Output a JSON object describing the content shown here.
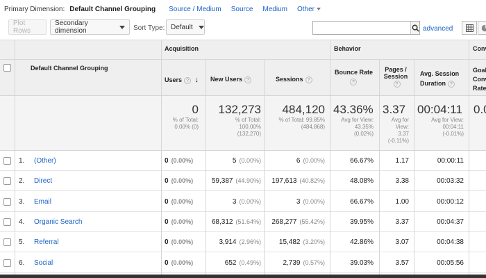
{
  "dimension_bar": {
    "label": "Primary Dimension:",
    "selected": "Default Channel Grouping",
    "options": [
      "Source / Medium",
      "Source",
      "Medium",
      "Other"
    ]
  },
  "toolbar": {
    "plot_rows": "Plot Rows",
    "secondary_dimension": "Secondary dimension",
    "sort_type_label": "Sort Type:",
    "sort_type_value": "Default",
    "search_value": "",
    "advanced": "advanced"
  },
  "table": {
    "dimension_header": "Default Channel Grouping",
    "groups": {
      "acquisition": "Acquisition",
      "behavior": "Behavior",
      "conversions": "Conv"
    },
    "columns": {
      "users": "Users",
      "new_users": "New Users",
      "sessions": "Sessions",
      "bounce_rate": "Bounce Rate",
      "pages_session": "Pages / Session",
      "avg_session_duration": "Avg. Session Duration",
      "conv_partial": "Goal Conv Rate"
    },
    "totals": {
      "users": {
        "value": "0",
        "sub": [
          "% of Total:",
          "0.00% (0)"
        ]
      },
      "new_users": {
        "value": "132,273",
        "sub": [
          "% of Total:",
          "100.00%",
          "(132,270)"
        ]
      },
      "sessions": {
        "value": "484,120",
        "sub": [
          "% of Total: 99.85%",
          "(484,868)"
        ]
      },
      "bounce_rate": {
        "value": "43.36%",
        "sub": [
          "Avg for View:",
          "43.35%",
          "(0.02%)"
        ]
      },
      "pages_session": {
        "value": "3.37",
        "sub": [
          "Avg for",
          "View:",
          "3.37",
          "(-0.11%)"
        ]
      },
      "avg_session_duration": {
        "value": "00:04:11",
        "sub": [
          "Avg for View:",
          "00:04:11",
          "(-0.01%)"
        ]
      },
      "conv_partial": {
        "value": "0.0",
        "sub": [
          "",
          ""
        ]
      }
    },
    "rows": [
      {
        "index": "1.",
        "name": "(Other)",
        "users": "0",
        "users_pct": "(0.00%)",
        "new_users": "5",
        "new_users_pct": "(0.00%)",
        "sessions": "6",
        "sessions_pct": "(0.00%)",
        "bounce_rate": "66.67%",
        "pages_session": "1.17",
        "avg_session_duration": "00:00:11"
      },
      {
        "index": "2.",
        "name": "Direct",
        "users": "0",
        "users_pct": "(0.00%)",
        "new_users": "59,387",
        "new_users_pct": "(44.90%)",
        "sessions": "197,613",
        "sessions_pct": "(40.82%)",
        "bounce_rate": "48.08%",
        "pages_session": "3.38",
        "avg_session_duration": "00:03:32"
      },
      {
        "index": "3.",
        "name": "Email",
        "users": "0",
        "users_pct": "(0.00%)",
        "new_users": "3",
        "new_users_pct": "(0.00%)",
        "sessions": "3",
        "sessions_pct": "(0.00%)",
        "bounce_rate": "66.67%",
        "pages_session": "1.00",
        "avg_session_duration": "00:00:12"
      },
      {
        "index": "4.",
        "name": "Organic Search",
        "users": "0",
        "users_pct": "(0.00%)",
        "new_users": "68,312",
        "new_users_pct": "(51.64%)",
        "sessions": "268,277",
        "sessions_pct": "(55.42%)",
        "bounce_rate": "39.95%",
        "pages_session": "3.37",
        "avg_session_duration": "00:04:37"
      },
      {
        "index": "5.",
        "name": "Referral",
        "users": "0",
        "users_pct": "(0.00%)",
        "new_users": "3,914",
        "new_users_pct": "(2.96%)",
        "sessions": "15,482",
        "sessions_pct": "(3.20%)",
        "bounce_rate": "42.86%",
        "pages_session": "3.07",
        "avg_session_duration": "00:04:38"
      },
      {
        "index": "6.",
        "name": "Social",
        "users": "0",
        "users_pct": "(0.00%)",
        "new_users": "652",
        "new_users_pct": "(0.49%)",
        "sessions": "2,739",
        "sessions_pct": "(0.57%)",
        "bounce_rate": "39.03%",
        "pages_session": "3.57",
        "avg_session_duration": "00:05:56"
      }
    ]
  },
  "icons": {
    "search": "search-icon",
    "grid_view": "grid-view-icon",
    "pie_view": "pie-view-icon",
    "sort": "sort-down-arrow-icon",
    "help": "help-icon"
  }
}
